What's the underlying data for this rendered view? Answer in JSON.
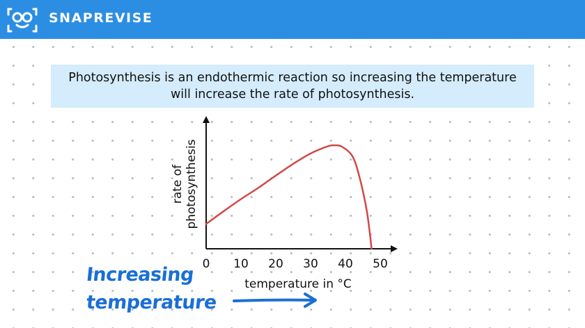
{
  "header": {
    "brand": "SNAPREVISE",
    "logo_icon": "smiling-face-logo-icon",
    "background_color": "#2c8ee3"
  },
  "callout": {
    "text": "Photosynthesis is an endothermic reaction so increasing the temperature will increase the rate of photosynthesis.",
    "background_color": "#d4ecfb"
  },
  "annotation": {
    "line1": "Increasing",
    "line2": "temperature",
    "arrow_icon": "right-arrow-icon",
    "color": "#1a6fd6"
  },
  "chart_data": {
    "type": "line",
    "title": "",
    "xlabel": "temperature in °C",
    "ylabel": [
      "rate of",
      "photosynthesis"
    ],
    "xlim": [
      0,
      55
    ],
    "ylim": [
      0,
      3
    ],
    "xticks": [
      "0",
      "10",
      "20",
      "30",
      "40",
      "50"
    ],
    "grid": false,
    "legend": "none",
    "line_color": "#cf4a46",
    "series": [
      {
        "x": [
          0,
          5,
          10,
          15,
          20,
          25,
          30,
          35,
          37,
          39,
          42,
          44,
          46,
          47,
          47.5
        ],
        "y": [
          0.55,
          0.83,
          1.1,
          1.35,
          1.62,
          1.88,
          2.11,
          2.27,
          2.29,
          2.26,
          2.05,
          1.6,
          0.9,
          0.35,
          0
        ]
      }
    ]
  }
}
